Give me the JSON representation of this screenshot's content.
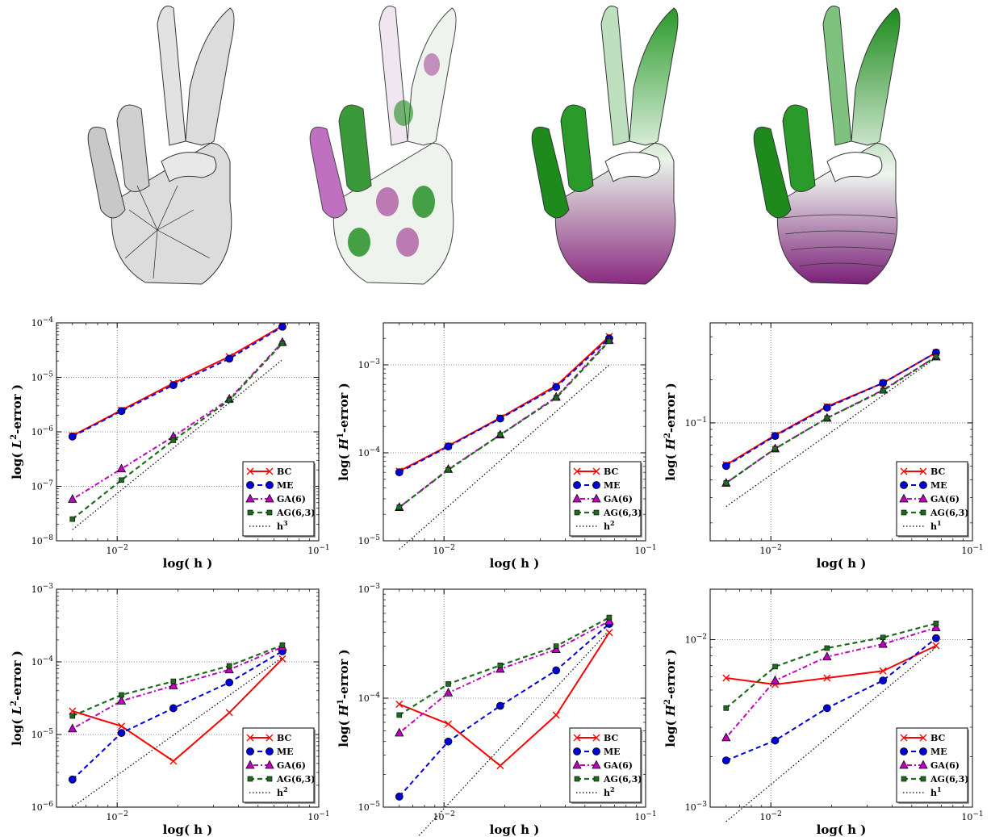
{
  "figure": {
    "hands": [
      {
        "name": "mesh",
        "base": "#d9d9d9"
      },
      {
        "name": "field-a",
        "base": "#eef3ee"
      },
      {
        "name": "field-b",
        "base": "#cfe8cf"
      },
      {
        "name": "field-c",
        "base": "#dff0df"
      }
    ],
    "colors": {
      "BC": "#ff0000",
      "ME": "#0000dd",
      "GA": "#bf00bf",
      "AG": "#1e6b1e",
      "h": "#000000",
      "green": "#1a8a1a",
      "magenta": "#9a2a8a"
    }
  },
  "chart_data": [
    {
      "type": "line",
      "scale": "log-log",
      "xlabel": "log( h )",
      "ylabel_pre": "log( ",
      "ylabel_sym": "L",
      "ylabel_sup": "2",
      "ylabel_post": "-error )",
      "xlim": [
        0.005,
        0.1
      ],
      "ylim": [
        1e-08,
        0.0001
      ],
      "xticks": [
        {
          "v": 0.01,
          "base": "10",
          "exp": "−2"
        },
        {
          "v": 0.1,
          "base": "10",
          "exp": "−1"
        }
      ],
      "yticks": [
        {
          "v": 1e-08,
          "base": "10",
          "exp": "−8"
        },
        {
          "v": 1e-07,
          "base": "10",
          "exp": "−7"
        },
        {
          "v": 1e-06,
          "base": "10",
          "exp": "−6"
        },
        {
          "v": 1e-05,
          "base": "10",
          "exp": "−5"
        },
        {
          "v": 0.0001,
          "base": "10",
          "exp": "−4"
        }
      ],
      "x": [
        0.006,
        0.0105,
        0.019,
        0.036,
        0.066
      ],
      "series": [
        {
          "name": "BC",
          "values": [
            8.5e-07,
            2.5e-06,
            7.8e-06,
            2.4e-05,
            8.8e-05
          ]
        },
        {
          "name": "ME",
          "values": [
            8.2e-07,
            2.4e-06,
            7.2e-06,
            2.2e-05,
            8.5e-05
          ]
        },
        {
          "name": "GA(6)",
          "values": [
            5.8e-08,
            2.1e-07,
            8.2e-07,
            4e-06,
            4.4e-05
          ]
        },
        {
          "name": "AG(6,3)",
          "values": [
            2.5e-08,
            1.3e-07,
            7e-07,
            3.8e-06,
            4.2e-05
          ]
        },
        {
          "name": "h",
          "sup": "3",
          "x": [
            0.006,
            0.066
          ],
          "values": [
            1.6e-08,
            2.1e-05
          ]
        }
      ]
    },
    {
      "type": "line",
      "scale": "log-log",
      "xlabel": "log( h )",
      "ylabel_pre": "log( ",
      "ylabel_sym": "H",
      "ylabel_sup": "1",
      "ylabel_post": "-error )",
      "xlim": [
        0.005,
        0.1
      ],
      "ylim": [
        1e-05,
        0.003
      ],
      "xticks": [
        {
          "v": 0.01,
          "base": "10",
          "exp": "−2"
        },
        {
          "v": 0.1,
          "base": "10",
          "exp": "−1"
        }
      ],
      "yticks": [
        {
          "v": 1e-05,
          "base": "10",
          "exp": "−5"
        },
        {
          "v": 0.0001,
          "base": "10",
          "exp": "−4"
        },
        {
          "v": 0.001,
          "base": "10",
          "exp": "−3"
        }
      ],
      "x": [
        0.006,
        0.0105,
        0.019,
        0.036,
        0.066
      ],
      "series": [
        {
          "name": "BC",
          "values": [
            6.2e-05,
            0.00012,
            0.00025,
            0.00058,
            0.0021
          ]
        },
        {
          "name": "ME",
          "values": [
            6e-05,
            0.000118,
            0.000245,
            0.00056,
            0.002
          ]
        },
        {
          "name": "GA(6)",
          "values": [
            2.4e-05,
            6.5e-05,
            0.00016,
            0.00043,
            0.0019
          ]
        },
        {
          "name": "AG(6,3)",
          "values": [
            2.4e-05,
            6.4e-05,
            0.00016,
            0.00042,
            0.00185
          ]
        },
        {
          "name": "h",
          "sup": "2",
          "x": [
            0.006,
            0.066
          ],
          "values": [
            8e-06,
            0.001
          ]
        }
      ]
    },
    {
      "type": "line",
      "scale": "log-log",
      "xlabel": "log( h )",
      "ylabel_pre": "log( ",
      "ylabel_sym": "H",
      "ylabel_sup": "2",
      "ylabel_post": "-error )",
      "xlim": [
        0.005,
        0.1
      ],
      "ylim": [
        0.015,
        0.5
      ],
      "xticks": [
        {
          "v": 0.01,
          "base": "10",
          "exp": "−2"
        },
        {
          "v": 0.1,
          "base": "10",
          "exp": "−1"
        }
      ],
      "yticks": [
        {
          "v": 0.1,
          "base": "10",
          "exp": "−1"
        }
      ],
      "x": [
        0.006,
        0.0105,
        0.019,
        0.036,
        0.066
      ],
      "series": [
        {
          "name": "BC",
          "values": [
            0.051,
            0.082,
            0.13,
            0.19,
            0.31
          ]
        },
        {
          "name": "ME",
          "values": [
            0.05,
            0.081,
            0.128,
            0.19,
            0.31
          ]
        },
        {
          "name": "GA(6)",
          "values": [
            0.038,
            0.066,
            0.108,
            0.17,
            0.29
          ]
        },
        {
          "name": "AG(6,3)",
          "values": [
            0.038,
            0.066,
            0.108,
            0.168,
            0.29
          ]
        },
        {
          "name": "h",
          "sup": "1",
          "x": [
            0.006,
            0.066
          ],
          "values": [
            0.026,
            0.285
          ]
        }
      ]
    },
    {
      "type": "line",
      "scale": "log-log",
      "xlabel": "log( h )",
      "ylabel_pre": "log( ",
      "ylabel_sym": "L",
      "ylabel_sup": "2",
      "ylabel_post": "-error )",
      "xlim": [
        0.005,
        0.1
      ],
      "ylim": [
        1e-06,
        0.001
      ],
      "xticks": [
        {
          "v": 0.01,
          "base": "10",
          "exp": "−2"
        },
        {
          "v": 0.1,
          "base": "10",
          "exp": "−1"
        }
      ],
      "yticks": [
        {
          "v": 1e-06,
          "base": "10",
          "exp": "−6"
        },
        {
          "v": 1e-05,
          "base": "10",
          "exp": "−5"
        },
        {
          "v": 0.0001,
          "base": "10",
          "exp": "−4"
        },
        {
          "v": 0.001,
          "base": "10",
          "exp": "−3"
        }
      ],
      "x": [
        0.006,
        0.0105,
        0.019,
        0.036,
        0.066
      ],
      "series": [
        {
          "name": "BC",
          "values": [
            2.1e-05,
            1.3e-05,
            4.3e-06,
            2e-05,
            0.00011
          ]
        },
        {
          "name": "ME",
          "values": [
            2.4e-06,
            1.05e-05,
            2.3e-05,
            5.2e-05,
            0.00014
          ]
        },
        {
          "name": "GA(6)",
          "values": [
            1.2e-05,
            2.9e-05,
            4.7e-05,
            7.8e-05,
            0.00016
          ]
        },
        {
          "name": "AG(6,3)",
          "values": [
            1.8e-05,
            3.5e-05,
            5.4e-05,
            8.8e-05,
            0.00017
          ]
        },
        {
          "name": "h",
          "sup": "2",
          "x": [
            0.006,
            0.066
          ],
          "values": [
            1e-06,
            0.000115
          ]
        }
      ]
    },
    {
      "type": "line",
      "scale": "log-log",
      "xlabel": "log( h )",
      "ylabel_pre": "log( ",
      "ylabel_sym": "H",
      "ylabel_sup": "1",
      "ylabel_post": "-error )",
      "xlim": [
        0.005,
        0.1
      ],
      "ylim": [
        1e-05,
        0.001
      ],
      "xticks": [
        {
          "v": 0.01,
          "base": "10",
          "exp": "−2"
        },
        {
          "v": 0.1,
          "base": "10",
          "exp": "−1"
        }
      ],
      "yticks": [
        {
          "v": 1e-05,
          "base": "10",
          "exp": "−5"
        },
        {
          "v": 0.0001,
          "base": "10",
          "exp": "−4"
        },
        {
          "v": 0.001,
          "base": "10",
          "exp": "−3"
        }
      ],
      "x": [
        0.006,
        0.0105,
        0.019,
        0.036,
        0.066
      ],
      "series": [
        {
          "name": "BC",
          "values": [
            8.8e-05,
            5.8e-05,
            2.4e-05,
            7e-05,
            0.0004
          ]
        },
        {
          "name": "ME",
          "values": [
            1.25e-05,
            4e-05,
            8.5e-05,
            0.00018,
            0.00048
          ]
        },
        {
          "name": "GA(6)",
          "values": [
            4.8e-05,
            0.000112,
            0.000185,
            0.00028,
            0.00051
          ]
        },
        {
          "name": "AG(6,3)",
          "values": [
            7e-05,
            0.000135,
            0.0002,
            0.0003,
            0.00055
          ]
        },
        {
          "name": "h",
          "sup": "2",
          "x": [
            0.006,
            0.066
          ],
          "values": [
            3.5e-06,
            0.00042
          ]
        }
      ]
    },
    {
      "type": "line",
      "scale": "log-log",
      "xlabel": "log( h )",
      "ylabel_pre": "log( ",
      "ylabel_sym": "H",
      "ylabel_sup": "2",
      "ylabel_post": "-error )",
      "xlim": [
        0.005,
        0.1
      ],
      "ylim": [
        0.001,
        0.02
      ],
      "xticks": [
        {
          "v": 0.01,
          "base": "10",
          "exp": "−2"
        },
        {
          "v": 0.1,
          "base": "10",
          "exp": "−1"
        }
      ],
      "yticks": [
        {
          "v": 0.001,
          "base": "10",
          "exp": "−3"
        },
        {
          "v": 0.01,
          "base": "10",
          "exp": "−2"
        }
      ],
      "x": [
        0.006,
        0.0105,
        0.019,
        0.036,
        0.066
      ],
      "series": [
        {
          "name": "BC",
          "values": [
            0.0059,
            0.0054,
            0.0059,
            0.0065,
            0.0092
          ]
        },
        {
          "name": "ME",
          "values": [
            0.0019,
            0.0025,
            0.0039,
            0.0057,
            0.0102
          ]
        },
        {
          "name": "GA(6)",
          "values": [
            0.0026,
            0.0057,
            0.0079,
            0.0094,
            0.0118
          ]
        },
        {
          "name": "AG(6,3)",
          "values": [
            0.0039,
            0.0069,
            0.0089,
            0.0103,
            0.0125
          ]
        },
        {
          "name": "h",
          "sup": "1",
          "x": [
            0.006,
            0.066
          ],
          "values": [
            0.00082,
            0.009
          ]
        }
      ]
    }
  ]
}
